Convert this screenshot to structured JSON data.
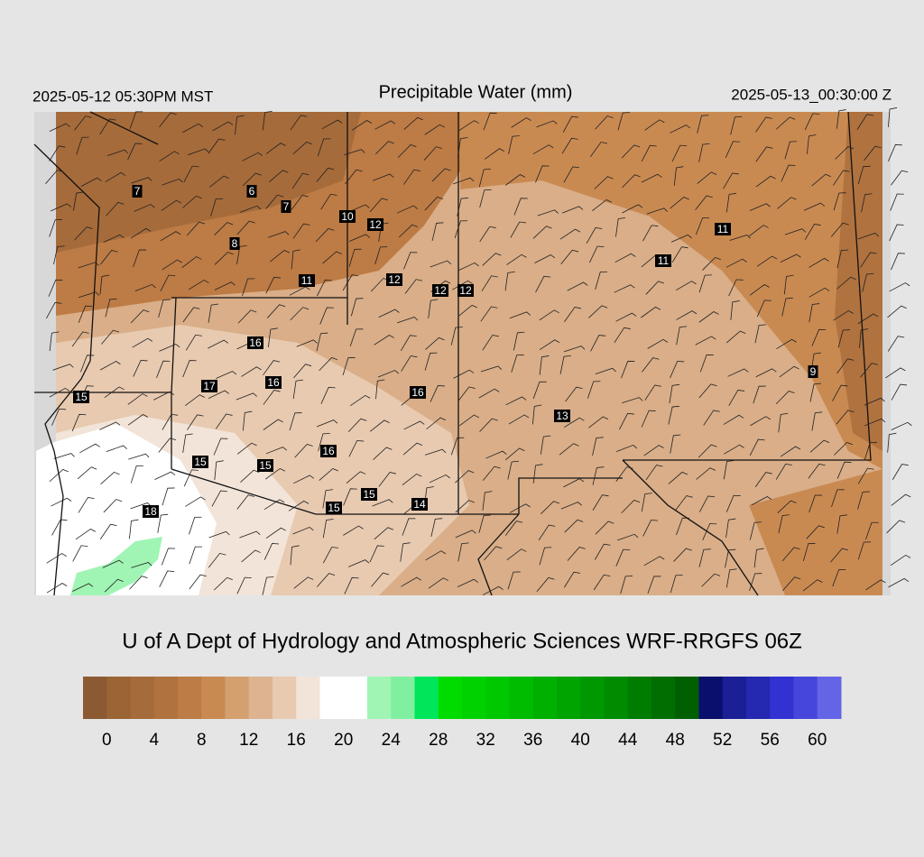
{
  "header": {
    "title": "Precipitable Water (mm)",
    "valid_local": "2025-05-12 05:30PM MST",
    "valid_utc": "2025-05-13_00:30:00 Z"
  },
  "credit": "U of A Dept of Hydrology and Atmospheric Sciences WRF-RRGFS 06Z",
  "stations": [
    7,
    6,
    7,
    10,
    12,
    8,
    11,
    12,
    12,
    12,
    11,
    11,
    16,
    17,
    16,
    16,
    15,
    13,
    9,
    16,
    15,
    15,
    15,
    15,
    14,
    18
  ],
  "colorbar": {
    "lim": [
      -2,
      62
    ],
    "ticks": [
      0,
      4,
      8,
      12,
      16,
      20,
      24,
      28,
      32,
      36,
      40,
      44,
      48,
      52,
      56,
      60
    ],
    "colors": [
      "#8b5a32",
      "#9a6434",
      "#a66b3a",
      "#b0723f",
      "#bd7b45",
      "#c98a52",
      "#d4a070",
      "#ddb48f",
      "#e8cab0",
      "#f2e4d8",
      "#ffffff",
      "#ffffff",
      "#a0f5b4",
      "#80f0a0",
      "#00e65a",
      "#00dc00",
      "#00d200",
      "#00c800",
      "#00bc00",
      "#00b000",
      "#00a400",
      "#009800",
      "#008c00",
      "#007d00",
      "#006e00",
      "#005f00",
      "#0a0f6e",
      "#1a1f96",
      "#2528b0",
      "#3232d2",
      "#4646dc",
      "#6464e6"
    ]
  }
}
